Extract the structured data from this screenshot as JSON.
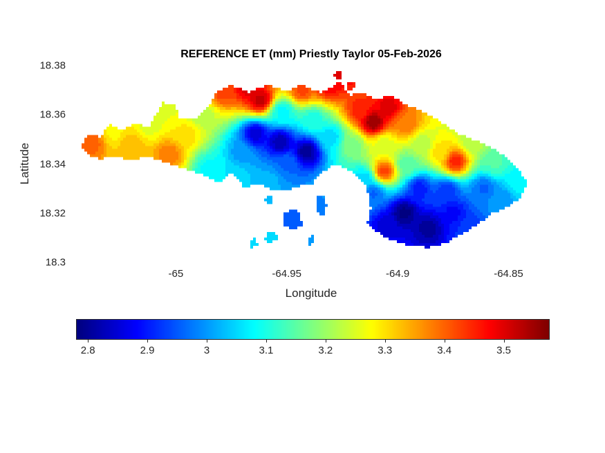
{
  "chart_data": {
    "type": "heatmap",
    "title": "REFERENCE ET (mm) Priestly Taylor 05-Feb-2026",
    "xlabel": "Longitude",
    "ylabel": "Latitude",
    "units": "mm",
    "xlim": [
      -65.045,
      -64.833
    ],
    "ylim": [
      18.3,
      18.38
    ],
    "grid": false,
    "xticks": [
      {
        "value": -65,
        "label": "-65"
      },
      {
        "value": -64.95,
        "label": "-64.95"
      },
      {
        "value": -64.9,
        "label": "-64.9"
      },
      {
        "value": -64.85,
        "label": "-64.85"
      }
    ],
    "yticks": [
      {
        "value": 18.38,
        "label": "18.38"
      },
      {
        "value": 18.36,
        "label": "18.36"
      },
      {
        "value": 18.34,
        "label": "18.34"
      },
      {
        "value": 18.32,
        "label": "18.32"
      },
      {
        "value": 18.3,
        "label": "18.3"
      }
    ],
    "colormap": "jet",
    "colorbar": {
      "orientation": "horizontal",
      "min": 2.78,
      "max": 3.575,
      "ticks": [
        {
          "value": 2.8,
          "label": "2.8"
        },
        {
          "value": 2.9,
          "label": "2.9"
        },
        {
          "value": 3,
          "label": "3"
        },
        {
          "value": 3.1,
          "label": "3.1"
        },
        {
          "value": 3.2,
          "label": "3.2"
        },
        {
          "value": 3.3,
          "label": "3.3"
        },
        {
          "value": 3.4,
          "label": "3.4"
        },
        {
          "value": 3.5,
          "label": "3.5"
        }
      ]
    },
    "contour_step": 0.025,
    "text_color": "#262626",
    "background": "#ffffff",
    "land_outline": [
      [
        -65.043,
        18.347
      ],
      [
        -65.04,
        18.352
      ],
      [
        -65.034,
        18.351
      ],
      [
        -65.03,
        18.356
      ],
      [
        -65.024,
        18.354
      ],
      [
        -65.018,
        18.357
      ],
      [
        -65.012,
        18.355
      ],
      [
        -65.009,
        18.36
      ],
      [
        -65.006,
        18.365
      ],
      [
        -65.0,
        18.364
      ],
      [
        -64.998,
        18.358
      ],
      [
        -64.991,
        18.359
      ],
      [
        -64.985,
        18.363
      ],
      [
        -64.982,
        18.369
      ],
      [
        -64.975,
        18.372
      ],
      [
        -64.967,
        18.369
      ],
      [
        -64.959,
        18.372
      ],
      [
        -64.95,
        18.37
      ],
      [
        -64.943,
        18.372
      ],
      [
        -64.935,
        18.369
      ],
      [
        -64.93,
        18.371
      ],
      [
        -64.926,
        18.374
      ],
      [
        -64.922,
        18.368
      ],
      [
        -64.916,
        18.369
      ],
      [
        -64.91,
        18.366
      ],
      [
        -64.903,
        18.368
      ],
      [
        -64.896,
        18.364
      ],
      [
        -64.888,
        18.361
      ],
      [
        -64.88,
        18.357
      ],
      [
        -64.872,
        18.352
      ],
      [
        -64.863,
        18.349
      ],
      [
        -64.856,
        18.346
      ],
      [
        -64.85,
        18.342
      ],
      [
        -64.845,
        18.337
      ],
      [
        -64.841,
        18.332
      ],
      [
        -64.845,
        18.326
      ],
      [
        -64.851,
        18.322
      ],
      [
        -64.857,
        18.32
      ],
      [
        -64.863,
        18.316
      ],
      [
        -64.87,
        18.312
      ],
      [
        -64.878,
        18.308
      ],
      [
        -64.886,
        18.306
      ],
      [
        -64.895,
        18.307
      ],
      [
        -64.903,
        18.309
      ],
      [
        -64.91,
        18.313
      ],
      [
        -64.916,
        18.318
      ],
      [
        -64.921,
        18.323
      ],
      [
        -64.925,
        18.329
      ],
      [
        -64.933,
        18.33
      ],
      [
        -64.941,
        18.332
      ],
      [
        -64.948,
        18.33
      ],
      [
        -64.956,
        18.329
      ],
      [
        -64.963,
        18.332
      ],
      [
        -64.97,
        18.33
      ],
      [
        -64.977,
        18.331
      ],
      [
        -64.984,
        18.334
      ],
      [
        -64.992,
        18.337
      ],
      [
        -64.999,
        18.339
      ],
      [
        -65.006,
        18.341
      ],
      [
        -65.013,
        18.343
      ],
      [
        -65.02,
        18.341
      ],
      [
        -65.027,
        18.343
      ],
      [
        -65.034,
        18.342
      ],
      [
        -65.04,
        18.344
      ]
    ],
    "cutouts": [
      [
        [
          -64.94,
          18.296
        ],
        [
          -64.94,
          18.33
        ],
        [
          -64.935,
          18.336
        ],
        [
          -64.928,
          18.34
        ],
        [
          -64.92,
          18.337
        ],
        [
          -64.914,
          18.331
        ],
        [
          -64.912,
          18.322
        ],
        [
          -64.916,
          18.308
        ],
        [
          -64.92,
          18.296
        ]
      ],
      [
        [
          -64.981,
          18.324
        ],
        [
          -64.98,
          18.333
        ],
        [
          -64.975,
          18.336
        ],
        [
          -64.97,
          18.332
        ],
        [
          -64.971,
          18.324
        ]
      ]
    ],
    "islets": [
      [
        [
          -64.952,
          18.319
        ],
        [
          -64.948,
          18.322
        ],
        [
          -64.944,
          18.32
        ],
        [
          -64.943,
          18.315
        ],
        [
          -64.947,
          18.313
        ],
        [
          -64.951,
          18.315
        ]
      ],
      [
        [
          -64.937,
          18.326
        ],
        [
          -64.934,
          18.328
        ],
        [
          -64.932,
          18.323
        ],
        [
          -64.934,
          18.318
        ],
        [
          -64.937,
          18.321
        ]
      ],
      [
        [
          -64.959,
          18.312
        ],
        [
          -64.956,
          18.313
        ],
        [
          -64.954,
          18.31
        ],
        [
          -64.957,
          18.308
        ],
        [
          -64.96,
          18.309
        ]
      ],
      [
        [
          -64.941,
          18.31
        ],
        [
          -64.938,
          18.311
        ],
        [
          -64.937,
          18.308
        ],
        [
          -64.94,
          18.307
        ]
      ],
      [
        [
          -64.929,
          18.377
        ],
        [
          -64.926,
          18.378
        ],
        [
          -64.925,
          18.375
        ],
        [
          -64.928,
          18.374
        ]
      ],
      [
        [
          -64.923,
          18.373
        ],
        [
          -64.92,
          18.374
        ],
        [
          -64.919,
          18.371
        ],
        [
          -64.922,
          18.37
        ]
      ],
      [
        [
          -64.967,
          18.309
        ],
        [
          -64.964,
          18.31
        ],
        [
          -64.963,
          18.307
        ],
        [
          -64.966,
          18.306
        ]
      ],
      [
        [
          -64.96,
          18.326
        ],
        [
          -64.957,
          18.327
        ],
        [
          -64.956,
          18.324
        ],
        [
          -64.959,
          18.323
        ]
      ]
    ],
    "control_points": [
      [
        -65.038,
        18.349,
        3.4
      ],
      [
        -65.028,
        18.353,
        3.28
      ],
      [
        -65.02,
        18.348,
        3.33
      ],
      [
        -65.012,
        18.356,
        3.25
      ],
      [
        -65.006,
        18.362,
        3.26
      ],
      [
        -65.003,
        18.344,
        3.38
      ],
      [
        -64.995,
        18.352,
        3.3
      ],
      [
        -64.988,
        18.36,
        3.22
      ],
      [
        -64.985,
        18.338,
        3.08
      ],
      [
        -64.979,
        18.369,
        3.42
      ],
      [
        -64.968,
        18.371,
        3.5
      ],
      [
        -64.962,
        18.366,
        3.52
      ],
      [
        -64.943,
        18.37,
        3.42
      ],
      [
        -64.931,
        18.372,
        3.48
      ],
      [
        -64.926,
        18.376,
        3.5
      ],
      [
        -64.964,
        18.352,
        2.85
      ],
      [
        -64.953,
        18.349,
        2.82
      ],
      [
        -64.941,
        18.345,
        2.8
      ],
      [
        -64.95,
        18.34,
        2.96
      ],
      [
        -64.97,
        18.345,
        3.0
      ],
      [
        -64.958,
        18.333,
        3.02
      ],
      [
        -64.972,
        18.334,
        3.05
      ],
      [
        -64.93,
        18.351,
        3.05
      ],
      [
        -64.938,
        18.358,
        3.1
      ],
      [
        -64.952,
        18.361,
        3.08
      ],
      [
        -64.911,
        18.357,
        3.56
      ],
      [
        -64.904,
        18.363,
        3.5
      ],
      [
        -64.917,
        18.362,
        3.45
      ],
      [
        -64.896,
        18.356,
        3.38
      ],
      [
        -64.92,
        18.348,
        3.18
      ],
      [
        -64.906,
        18.348,
        3.25
      ],
      [
        -64.906,
        18.337,
        3.42
      ],
      [
        -64.896,
        18.34,
        3.15
      ],
      [
        -64.889,
        18.348,
        3.22
      ],
      [
        -64.874,
        18.341,
        3.45
      ],
      [
        -64.881,
        18.345,
        3.3
      ],
      [
        -64.866,
        18.349,
        3.22
      ],
      [
        -64.856,
        18.34,
        3.14
      ],
      [
        -64.846,
        18.333,
        3.08
      ],
      [
        -64.853,
        18.326,
        3.0
      ],
      [
        -64.861,
        18.33,
        2.96
      ],
      [
        -64.897,
        18.32,
        2.78
      ],
      [
        -64.886,
        18.314,
        2.8
      ],
      [
        -64.905,
        18.315,
        2.85
      ],
      [
        -64.875,
        18.32,
        2.88
      ],
      [
        -64.868,
        18.314,
        2.92
      ],
      [
        -64.911,
        18.328,
        2.96
      ],
      [
        -64.89,
        18.33,
        2.9
      ],
      [
        -64.878,
        18.329,
        2.92
      ],
      [
        -64.948,
        18.317,
        2.95
      ],
      [
        -64.936,
        18.322,
        2.98
      ],
      [
        -64.957,
        18.31,
        3.05
      ],
      [
        -64.966,
        18.308,
        3.05
      ],
      [
        -64.915,
        18.334,
        3.05
      ]
    ]
  }
}
